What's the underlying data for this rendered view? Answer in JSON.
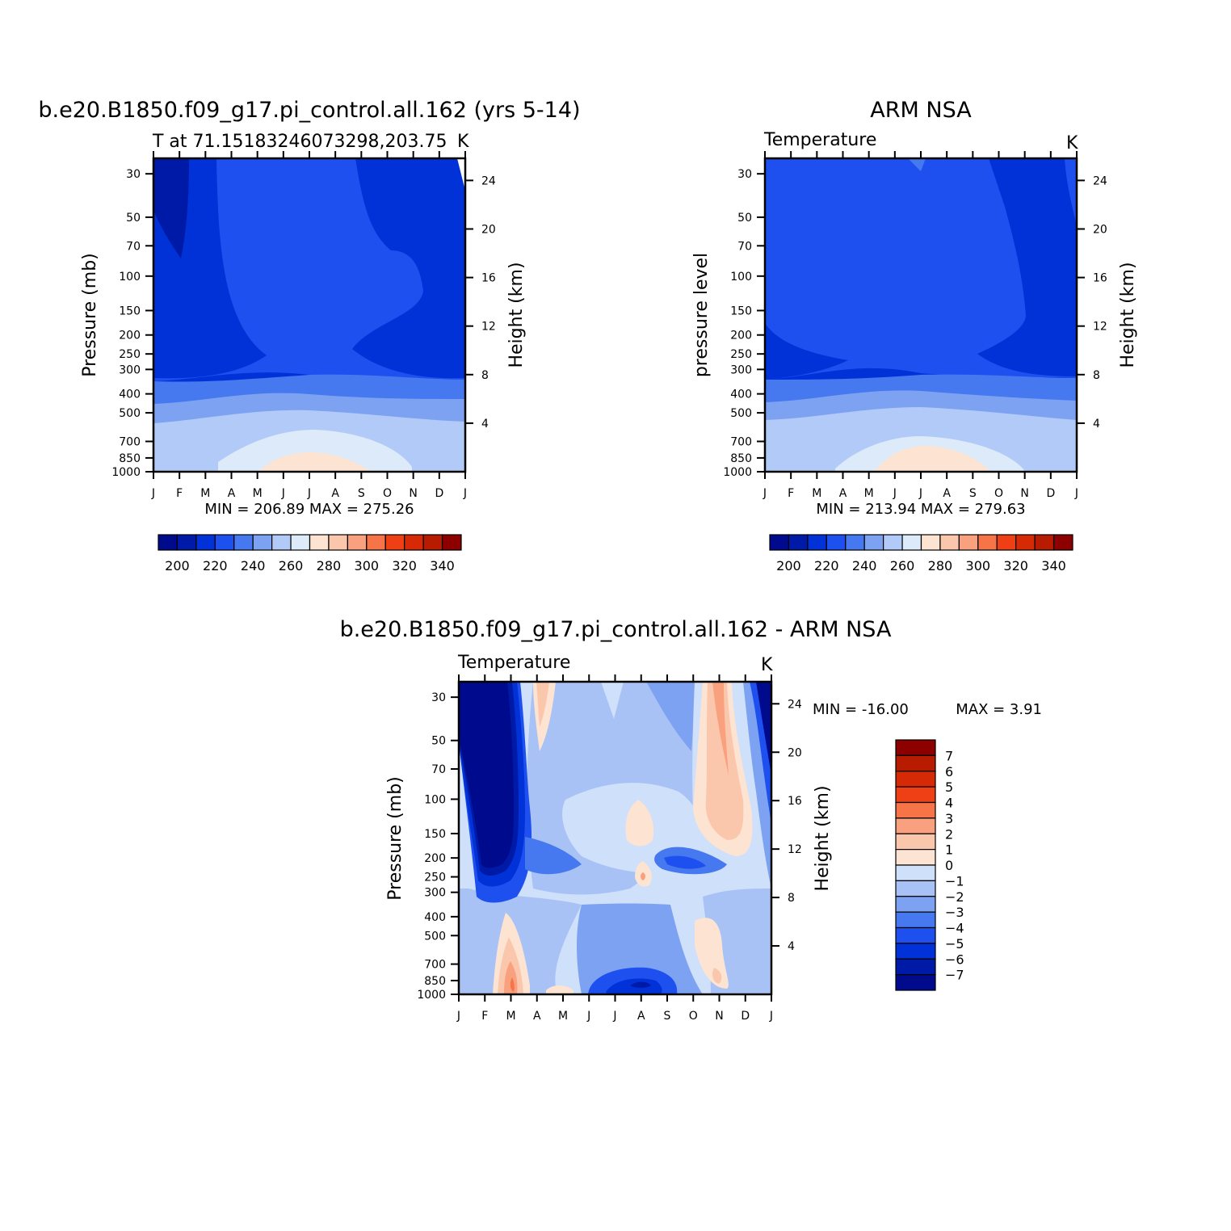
{
  "colors": {
    "temp_levels": [
      "#000a8c",
      "#001aa8",
      "#0032d8",
      "#1e50f0",
      "#4678f0",
      "#7ea2f2",
      "#b2caf8",
      "#dceaf9",
      "#fde4d2",
      "#fbc7ac",
      "#f9a07e",
      "#f67448",
      "#ee4014",
      "#d62a06",
      "#b71c00",
      "#8c0000"
    ],
    "diff_levels": [
      "#000a8c",
      "#001aa8",
      "#0032d8",
      "#1e50f0",
      "#4678f0",
      "#7ea2f2",
      "#a8c2f6",
      "#cfe0fa",
      "#fde4d2",
      "#fbc7ac",
      "#f9a07e",
      "#f67448",
      "#ee4014",
      "#d62a06",
      "#b71c00",
      "#8c0000"
    ]
  },
  "panels": {
    "model": {
      "title": "b.e20.B1850.f09_g17.pi_control.all.162 (yrs 5-14)",
      "subtitle_left": "T at 71.15183246073298,203.75",
      "subtitle_right": "K",
      "ylabel": "Pressure (mb)",
      "ylabel_right": "Height (km)",
      "stats": "MIN = 206.89  MAX = 275.26",
      "colorbar_labels": [
        "200",
        "220",
        "240",
        "260",
        "280",
        "300",
        "320",
        "340"
      ]
    },
    "obs": {
      "title": "ARM NSA",
      "subtitle_left": "Temperature",
      "subtitle_right": "K",
      "ylabel": "pressure level",
      "ylabel_right": "Height (km)",
      "stats": "MIN = 213.94  MAX = 279.63",
      "colorbar_labels": [
        "200",
        "220",
        "240",
        "260",
        "280",
        "300",
        "320",
        "340"
      ]
    },
    "diff": {
      "title": "b.e20.B1850.f09_g17.pi_control.all.162 - ARM NSA",
      "subtitle_left": "Temperature",
      "subtitle_right": "K",
      "ylabel": "Pressure (mb)",
      "ylabel_right": "Height (km)",
      "stats_min": "MIN = -16.00",
      "stats_max": "MAX =     3.91",
      "colorbar_labels": [
        "7",
        "6",
        "5",
        "4",
        "3",
        "2",
        "1",
        "0",
        "-1",
        "-2",
        "-3",
        "-4",
        "-5",
        "-6",
        "-7"
      ]
    }
  },
  "chart_data": [
    {
      "type": "heatmap",
      "title": "b.e20.B1850.f09_g17.pi_control.all.162 (yrs 5-14)",
      "variable": "T at 71.15183246073298,203.75",
      "units": "K",
      "x_labels": [
        "J",
        "F",
        "M",
        "A",
        "M",
        "J",
        "J",
        "A",
        "S",
        "O",
        "N",
        "D",
        "J"
      ],
      "y_ticks": [
        30,
        50,
        70,
        100,
        150,
        200,
        250,
        300,
        400,
        500,
        700,
        850,
        1000
      ],
      "height_ticks_km": [
        24,
        20,
        16,
        12,
        8,
        4
      ],
      "ylabel": "Pressure (mb)",
      "ylim": [
        1000,
        25
      ],
      "y_scale": "log",
      "colorbar": [
        200,
        220,
        240,
        260,
        280,
        300,
        320,
        340
      ],
      "min": 206.89,
      "max": 275.26
    },
    {
      "type": "heatmap",
      "title": "ARM NSA",
      "variable": "Temperature",
      "units": "K",
      "x_labels": [
        "J",
        "F",
        "M",
        "A",
        "M",
        "J",
        "J",
        "A",
        "S",
        "O",
        "N",
        "D",
        "J"
      ],
      "y_ticks": [
        30,
        50,
        70,
        100,
        150,
        200,
        250,
        300,
        400,
        500,
        700,
        850,
        1000
      ],
      "height_ticks_km": [
        24,
        20,
        16,
        12,
        8,
        4
      ],
      "ylabel": "pressure level",
      "ylim": [
        1000,
        25
      ],
      "y_scale": "log",
      "colorbar": [
        200,
        220,
        240,
        260,
        280,
        300,
        320,
        340
      ],
      "min": 213.94,
      "max": 279.63
    },
    {
      "type": "heatmap",
      "title": "b.e20.B1850.f09_g17.pi_control.all.162 - ARM NSA",
      "variable": "Temperature",
      "units": "K",
      "x_labels": [
        "J",
        "F",
        "M",
        "A",
        "M",
        "J",
        "J",
        "A",
        "S",
        "O",
        "N",
        "D",
        "J"
      ],
      "y_ticks": [
        30,
        50,
        70,
        100,
        150,
        200,
        250,
        300,
        400,
        500,
        700,
        850,
        1000
      ],
      "height_ticks_km": [
        24,
        20,
        16,
        12,
        8,
        4
      ],
      "ylabel": "Pressure (mb)",
      "ylim": [
        1000,
        25
      ],
      "y_scale": "log",
      "colorbar": [
        7,
        6,
        5,
        4,
        3,
        2,
        1,
        0,
        -1,
        -2,
        -3,
        -4,
        -5,
        -6,
        -7
      ],
      "min": -16.0,
      "max": 3.91
    }
  ]
}
